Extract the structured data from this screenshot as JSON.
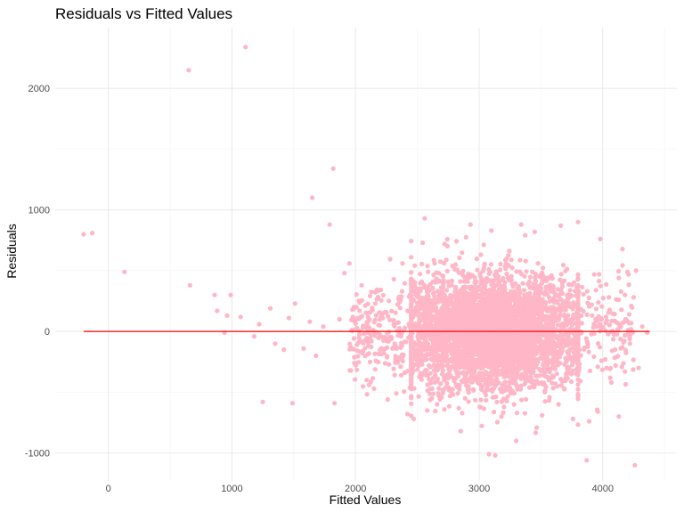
{
  "chart_data": {
    "type": "scatter",
    "title": "Residuals vs Fitted Values",
    "xlabel": "Fitted Values",
    "ylabel": "Residuals",
    "xlim": [
      -430,
      4600
    ],
    "ylim": [
      -1230,
      2500
    ],
    "x_ticks": [
      0,
      1000,
      2000,
      3000,
      4000
    ],
    "x_tick_labels": [
      "0",
      "1000",
      "2000",
      "3000",
      "4000"
    ],
    "y_ticks": [
      -1000,
      0,
      1000,
      2000
    ],
    "y_tick_labels": [
      "-1000",
      "0",
      "1000",
      "2000"
    ],
    "grid": true,
    "legend": "none",
    "point_color": "#ffb6c6",
    "reference_line": {
      "y": 0,
      "x_range": [
        -200,
        4380
      ],
      "color": "#ff0000"
    },
    "outliers": [
      {
        "x": 1110,
        "y": 2340
      },
      {
        "x": 650,
        "y": 2150
      },
      {
        "x": 1820,
        "y": 1340
      },
      {
        "x": 1650,
        "y": 1100
      },
      {
        "x": 1790,
        "y": 880
      },
      {
        "x": 2560,
        "y": 930
      },
      {
        "x": -200,
        "y": 800
      },
      {
        "x": -130,
        "y": 810
      },
      {
        "x": 130,
        "y": 490
      },
      {
        "x": 660,
        "y": 380
      },
      {
        "x": 860,
        "y": 300
      },
      {
        "x": 990,
        "y": 300
      },
      {
        "x": 880,
        "y": 170
      },
      {
        "x": 960,
        "y": 130
      },
      {
        "x": 1070,
        "y": 120
      },
      {
        "x": 940,
        "y": -10
      },
      {
        "x": 1180,
        "y": -40
      },
      {
        "x": 1250,
        "y": -580
      },
      {
        "x": 1490,
        "y": -590
      },
      {
        "x": 1830,
        "y": -590
      },
      {
        "x": 1510,
        "y": 230
      },
      {
        "x": 1310,
        "y": 190
      },
      {
        "x": 2850,
        "y": -820
      },
      {
        "x": 3080,
        "y": -1010
      },
      {
        "x": 3130,
        "y": -1020
      },
      {
        "x": 3300,
        "y": -900
      },
      {
        "x": 3870,
        "y": -1060
      },
      {
        "x": 4260,
        "y": -1100
      },
      {
        "x": 4130,
        "y": -700
      },
      {
        "x": 4290,
        "y": -300
      },
      {
        "x": 3960,
        "y": -660
      },
      {
        "x": 3890,
        "y": -740
      },
      {
        "x": 3980,
        "y": 760
      },
      {
        "x": 3800,
        "y": 900
      },
      {
        "x": 3660,
        "y": 870
      },
      {
        "x": 4270,
        "y": 500
      },
      {
        "x": 4200,
        "y": 490
      },
      {
        "x": 4130,
        "y": 440
      },
      {
        "x": 4360,
        "y": -10
      },
      {
        "x": 4320,
        "y": 40
      },
      {
        "x": 4250,
        "y": 280
      },
      {
        "x": 4180,
        "y": 300
      },
      {
        "x": 4050,
        "y": 280
      },
      {
        "x": 4220,
        "y": -100
      },
      {
        "x": 4100,
        "y": -150
      },
      {
        "x": 4180,
        "y": -330
      },
      {
        "x": 4070,
        "y": -420
      },
      {
        "x": 2420,
        "y": -680
      },
      {
        "x": 2470,
        "y": -720
      },
      {
        "x": 2580,
        "y": -650
      },
      {
        "x": 2660,
        "y": -600
      },
      {
        "x": 2310,
        "y": 430
      },
      {
        "x": 2380,
        "y": 560
      },
      {
        "x": 2930,
        "y": 880
      },
      {
        "x": 3340,
        "y": 880
      },
      {
        "x": 3450,
        "y": 820
      },
      {
        "x": 3100,
        "y": 830
      },
      {
        "x": 1950,
        "y": 560
      },
      {
        "x": 1910,
        "y": 480
      },
      {
        "x": 2050,
        "y": 380
      },
      {
        "x": 2160,
        "y": 230
      },
      {
        "x": 1630,
        "y": 80
      },
      {
        "x": 1740,
        "y": 40
      },
      {
        "x": 1580,
        "y": -140
      },
      {
        "x": 1680,
        "y": -200
      },
      {
        "x": 1420,
        "y": -150
      },
      {
        "x": 1990,
        "y": -260
      },
      {
        "x": 2090,
        "y": -400
      },
      {
        "x": 2150,
        "y": -470
      },
      {
        "x": 2260,
        "y": -560
      },
      {
        "x": 2330,
        "y": -510
      },
      {
        "x": 1350,
        "y": -100
      },
      {
        "x": 1220,
        "y": 60
      },
      {
        "x": 1460,
        "y": 110
      },
      {
        "x": 1870,
        "y": 100
      },
      {
        "x": 2230,
        "y": -180
      },
      {
        "x": 3980,
        "y": 60
      },
      {
        "x": 4020,
        "y": -230
      },
      {
        "x": 3760,
        "y": -720
      },
      {
        "x": 3510,
        "y": -690
      },
      {
        "x": 3180,
        "y": -700
      },
      {
        "x": 2720,
        "y": 720
      },
      {
        "x": 2640,
        "y": 560
      }
    ],
    "cluster": {
      "seed": 20240517,
      "count": 4200,
      "x_mean": 3120,
      "x_sd": 360,
      "y_mean": 0,
      "y_sd": 230,
      "wing_count": 320,
      "wing_x_range": [
        1950,
        2650
      ],
      "wing_y_sd": 200
    }
  }
}
